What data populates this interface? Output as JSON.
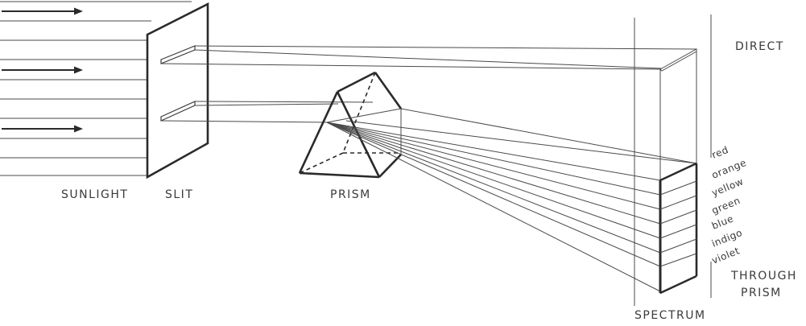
{
  "labels": {
    "sunlight": "SUNLIGHT",
    "slit": "SLIT",
    "prism": "PRISM",
    "spectrum": "SPECTRUM",
    "direct": "DIRECT",
    "through_line1": "THROUGH",
    "through_line2": "PRISM"
  },
  "spectrum_colors": [
    "red",
    "orange",
    "yellow",
    "green",
    "blue",
    "indigo",
    "violet"
  ]
}
